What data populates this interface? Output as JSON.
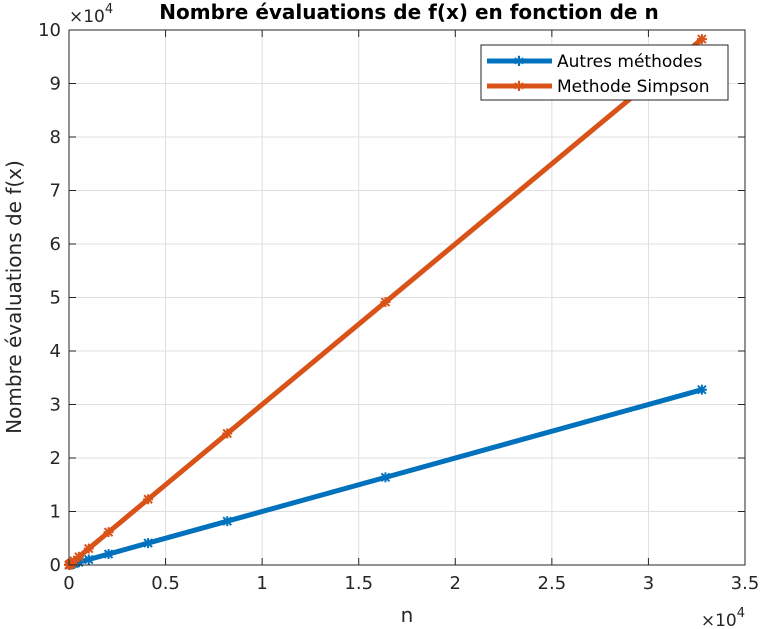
{
  "chart_data": {
    "type": "line",
    "title": "Nombre évaluations de f(x) en fonction de n",
    "xlabel": "n",
    "ylabel": "Nombre évaluations de f(x)",
    "x_exponent_base": "×10",
    "x_exponent_power": "4",
    "y_exponent_base": "×10",
    "y_exponent_power": "4",
    "xlim": [
      0,
      35000
    ],
    "ylim": [
      0,
      100000
    ],
    "xticks": [
      0,
      5000,
      10000,
      15000,
      20000,
      25000,
      30000,
      35000
    ],
    "xtick_labels": [
      "0",
      "0.5",
      "1",
      "1.5",
      "2",
      "2.5",
      "3",
      "3.5"
    ],
    "yticks": [
      0,
      10000,
      20000,
      30000,
      40000,
      50000,
      60000,
      70000,
      80000,
      90000,
      100000
    ],
    "ytick_labels": [
      "0",
      "1",
      "2",
      "3",
      "4",
      "5",
      "6",
      "7",
      "8",
      "9",
      "10"
    ],
    "grid": true,
    "legend_position": "top-right",
    "x": [
      2,
      4,
      8,
      16,
      32,
      64,
      128,
      256,
      512,
      1024,
      2048,
      4096,
      8192,
      16384,
      32768
    ],
    "series": [
      {
        "name": "Autres méthodes",
        "color": "#0072BD",
        "marker": "star",
        "values": [
          2,
          4,
          8,
          16,
          32,
          64,
          128,
          256,
          512,
          1024,
          2048,
          4096,
          8192,
          16384,
          32768
        ]
      },
      {
        "name": "Methode Simpson",
        "color": "#D95319",
        "marker": "star",
        "values": [
          6,
          12,
          24,
          48,
          96,
          192,
          384,
          768,
          1536,
          3072,
          6144,
          12288,
          24576,
          49152,
          98304
        ]
      }
    ]
  }
}
